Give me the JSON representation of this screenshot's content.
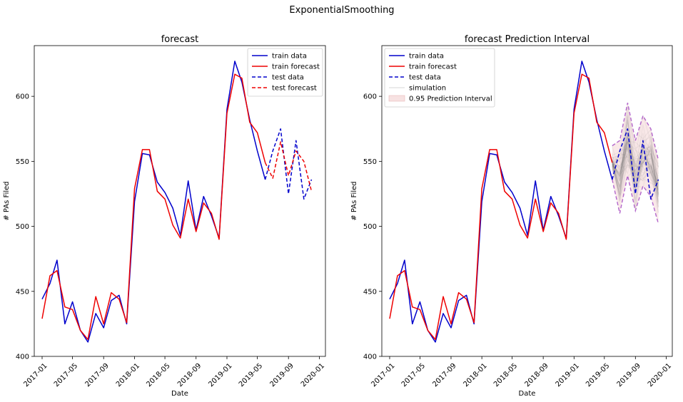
{
  "figure": {
    "suptitle": "ExponentialSmoothing"
  },
  "colors": {
    "train_data": "#0000cc",
    "train_forecast": "#ee0000",
    "simulation": "#606060",
    "interval_bound": "#b266cc",
    "interval_fill": "#f4d6d6"
  },
  "chart_data": [
    {
      "type": "line",
      "title": "forecast",
      "xlabel": "Date",
      "ylabel": "# PAs Filed",
      "xlim": [
        "2016-12-01",
        "2020-01-25"
      ],
      "ylim": [
        400,
        639
      ],
      "x_ticks": [
        "2017-01",
        "2017-05",
        "2017-09",
        "2018-01",
        "2018-05",
        "2018-09",
        "2019-01",
        "2019-05",
        "2019-09",
        "2020-01"
      ],
      "y_ticks": [
        400,
        450,
        500,
        550,
        600
      ],
      "legend": {
        "position": "top-right"
      },
      "series": [
        {
          "name": "train data",
          "style": "solid",
          "color": "#0000cc",
          "x": [
            "2017-01",
            "2017-02",
            "2017-03",
            "2017-04",
            "2017-05",
            "2017-06",
            "2017-07",
            "2017-08",
            "2017-09",
            "2017-10",
            "2017-11",
            "2017-12",
            "2018-01",
            "2018-02",
            "2018-03",
            "2018-04",
            "2018-05",
            "2018-06",
            "2018-07",
            "2018-08",
            "2018-09",
            "2018-10",
            "2018-11",
            "2018-12",
            "2019-01",
            "2019-02",
            "2019-03",
            "2019-04",
            "2019-05",
            "2019-06"
          ],
          "y": [
            444,
            456,
            474,
            425,
            442,
            420,
            411,
            433,
            422,
            443,
            447,
            425,
            519,
            556,
            555,
            534,
            526,
            514,
            493,
            535,
            497,
            523,
            508,
            491,
            590,
            627,
            611,
            582,
            558,
            536
          ]
        },
        {
          "name": "train forecast",
          "style": "solid",
          "color": "#ee0000",
          "x": [
            "2017-01",
            "2017-02",
            "2017-03",
            "2017-04",
            "2017-05",
            "2017-06",
            "2017-07",
            "2017-08",
            "2017-09",
            "2017-10",
            "2017-11",
            "2017-12",
            "2018-01",
            "2018-02",
            "2018-03",
            "2018-04",
            "2018-05",
            "2018-06",
            "2018-07",
            "2018-08",
            "2018-09",
            "2018-10",
            "2018-11",
            "2018-12",
            "2019-01",
            "2019-02",
            "2019-03",
            "2019-04",
            "2019-05",
            "2019-06"
          ],
          "y": [
            429,
            462,
            466,
            438,
            436,
            420,
            413,
            446,
            425,
            449,
            444,
            426,
            529,
            559,
            559,
            527,
            521,
            501,
            491,
            521,
            496,
            518,
            510,
            490,
            587,
            617,
            614,
            580,
            572,
            549
          ]
        },
        {
          "name": "test data",
          "style": "dashed",
          "color": "#0000cc",
          "x": [
            "2019-06",
            "2019-07",
            "2019-08",
            "2019-09",
            "2019-10",
            "2019-11",
            "2019-12"
          ],
          "y": [
            536,
            558,
            575,
            525,
            566,
            521,
            536
          ]
        },
        {
          "name": "test forecast",
          "style": "dashed",
          "color": "#ee0000",
          "x": [
            "2019-06",
            "2019-07",
            "2019-08",
            "2019-09",
            "2019-10",
            "2019-11",
            "2019-12"
          ],
          "y": [
            549,
            537,
            565,
            539,
            558,
            550,
            527
          ]
        }
      ]
    },
    {
      "type": "line",
      "title": "forecast Prediction Interval",
      "xlabel": "Date",
      "ylabel": "# PAs Filed",
      "xlim": [
        "2016-12-01",
        "2020-01-25"
      ],
      "ylim": [
        400,
        639
      ],
      "x_ticks": [
        "2017-01",
        "2017-05",
        "2017-09",
        "2018-01",
        "2018-05",
        "2018-09",
        "2019-01",
        "2019-05",
        "2019-09",
        "2020-01"
      ],
      "y_ticks": [
        400,
        450,
        500,
        550,
        600
      ],
      "legend": {
        "position": "top-left"
      },
      "series": [
        {
          "name": "train data",
          "style": "solid",
          "color": "#0000cc",
          "x": [
            "2017-01",
            "2017-02",
            "2017-03",
            "2017-04",
            "2017-05",
            "2017-06",
            "2017-07",
            "2017-08",
            "2017-09",
            "2017-10",
            "2017-11",
            "2017-12",
            "2018-01",
            "2018-02",
            "2018-03",
            "2018-04",
            "2018-05",
            "2018-06",
            "2018-07",
            "2018-08",
            "2018-09",
            "2018-10",
            "2018-11",
            "2018-12",
            "2019-01",
            "2019-02",
            "2019-03",
            "2019-04",
            "2019-05",
            "2019-06"
          ],
          "y": [
            444,
            456,
            474,
            425,
            442,
            420,
            411,
            433,
            422,
            443,
            447,
            425,
            519,
            556,
            555,
            534,
            526,
            514,
            493,
            535,
            497,
            523,
            508,
            491,
            590,
            627,
            611,
            582,
            558,
            536
          ]
        },
        {
          "name": "train forecast",
          "style": "solid",
          "color": "#ee0000",
          "x": [
            "2017-01",
            "2017-02",
            "2017-03",
            "2017-04",
            "2017-05",
            "2017-06",
            "2017-07",
            "2017-08",
            "2017-09",
            "2017-10",
            "2017-11",
            "2017-12",
            "2018-01",
            "2018-02",
            "2018-03",
            "2018-04",
            "2018-05",
            "2018-06",
            "2018-07",
            "2018-08",
            "2018-09",
            "2018-10",
            "2018-11",
            "2018-12",
            "2019-01",
            "2019-02",
            "2019-03",
            "2019-04",
            "2019-05",
            "2019-06"
          ],
          "y": [
            429,
            462,
            466,
            438,
            436,
            420,
            413,
            446,
            425,
            449,
            444,
            426,
            529,
            559,
            559,
            527,
            521,
            501,
            491,
            521,
            496,
            518,
            510,
            490,
            587,
            617,
            614,
            580,
            572,
            549
          ]
        },
        {
          "name": "test data",
          "style": "dashed",
          "color": "#0000cc",
          "x": [
            "2019-06",
            "2019-07",
            "2019-08",
            "2019-09",
            "2019-10",
            "2019-11",
            "2019-12"
          ],
          "y": [
            536,
            558,
            575,
            525,
            566,
            521,
            536
          ]
        }
      ],
      "simulation": {
        "name": "simulation",
        "x": [
          "2019-06",
          "2019-07",
          "2019-08",
          "2019-09",
          "2019-10",
          "2019-11",
          "2019-12"
        ],
        "center": [
          549,
          537,
          565,
          539,
          558,
          550,
          527
        ]
      },
      "prediction_interval": {
        "name": "0.95 Prediction Interval",
        "x": [
          "2019-06",
          "2019-07",
          "2019-08",
          "2019-09",
          "2019-10",
          "2019-11",
          "2019-12"
        ],
        "lower": [
          536,
          510,
          539,
          512,
          531,
          523,
          502
        ],
        "upper": [
          562,
          566,
          595,
          566,
          585,
          575,
          551
        ]
      }
    }
  ]
}
